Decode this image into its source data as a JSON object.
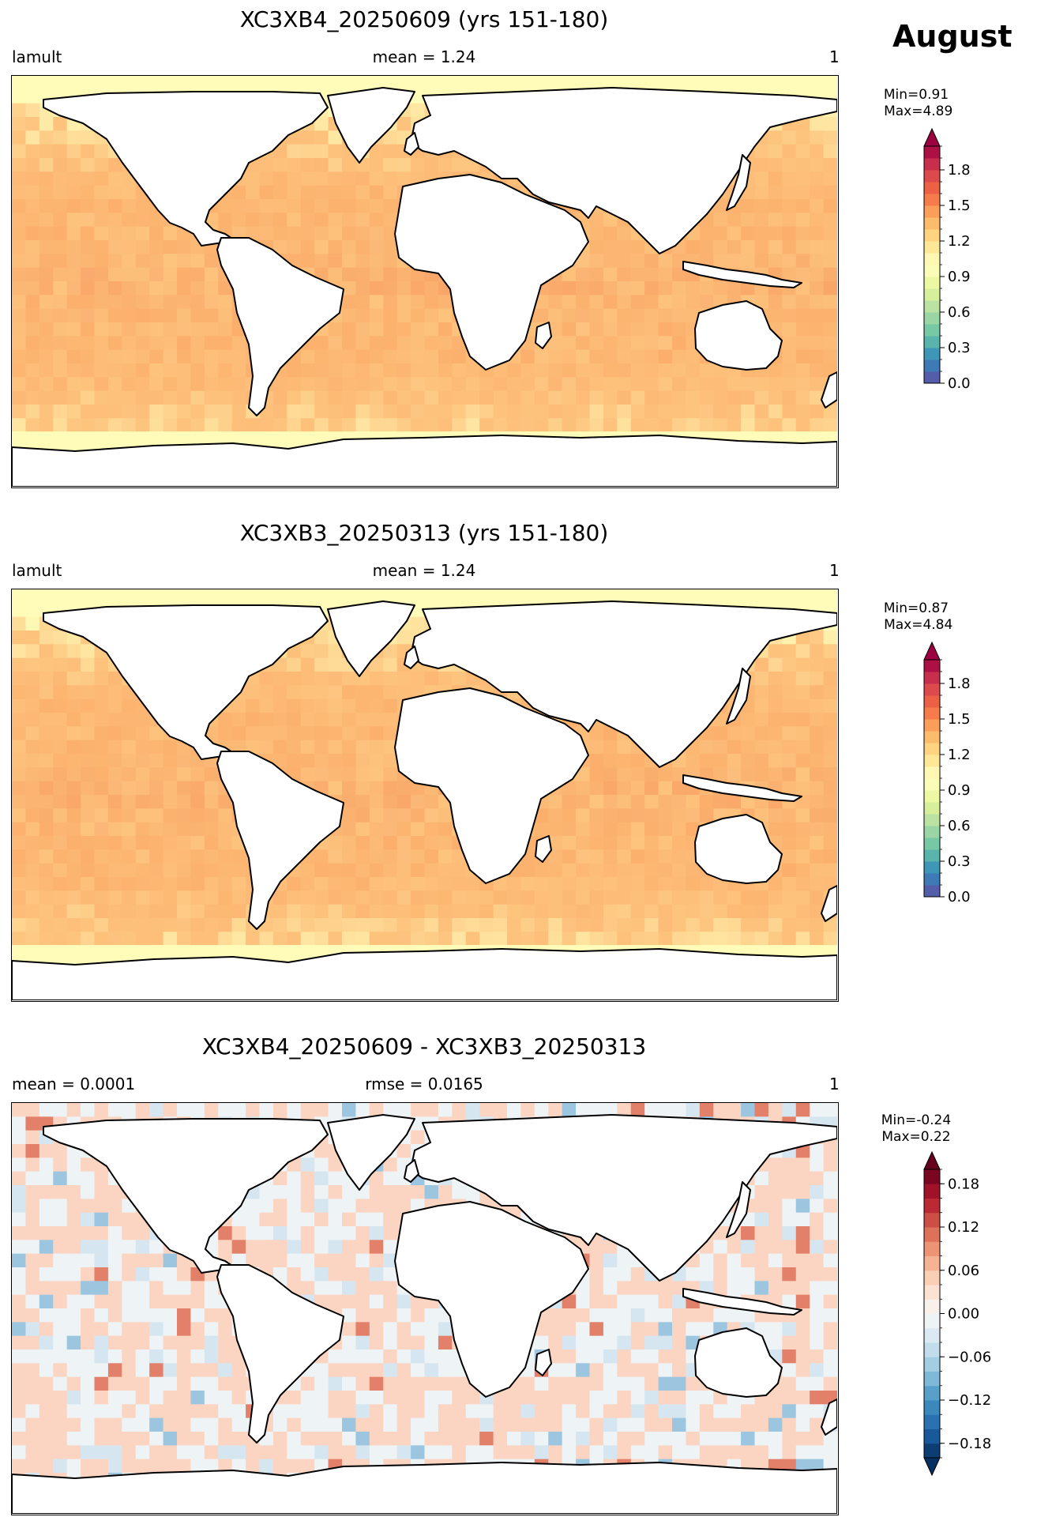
{
  "figure": {
    "month": "August"
  },
  "panels": [
    {
      "title": "XC3XB4_20250609 (yrs 151-180)",
      "left_label": "lamult",
      "center_label": "mean = 1.24",
      "right_label": "1",
      "colorbar": {
        "min_max_text": "Min=0.91\n Max=4.89",
        "cmap": "Spectral_r",
        "range": [
          0.0,
          2.0
        ],
        "extend": "max",
        "ticks": [
          "0.0",
          "0.3",
          "0.6",
          "0.9",
          "1.2",
          "1.5",
          "1.8"
        ]
      },
      "ocean_typical_value": 1.35
    },
    {
      "title": "XC3XB3_20250313 (yrs 151-180)",
      "left_label": "lamult",
      "center_label": "mean = 1.24",
      "right_label": "1",
      "colorbar": {
        "min_max_text": "Min=0.87\n Max=4.84",
        "cmap": "Spectral_r",
        "range": [
          0.0,
          2.0
        ],
        "extend": "max",
        "ticks": [
          "0.0",
          "0.3",
          "0.6",
          "0.9",
          "1.2",
          "1.5",
          "1.8"
        ]
      },
      "ocean_typical_value": 1.35
    },
    {
      "title": "XC3XB4_20250609 - XC3XB3_20250313",
      "left_label": "mean = 0.0001",
      "center_label": "rmse = 0.0165",
      "right_label": "1",
      "colorbar": {
        "min_max_text": "Min=-0.24\nMax=0.22",
        "cmap": "RdBu_r",
        "range": [
          -0.2,
          0.2
        ],
        "extend": "both",
        "ticks": [
          "−0.18",
          "−0.12",
          "−0.06",
          "0.00",
          "0.06",
          "0.12",
          "0.18"
        ]
      },
      "ocean_typical_value": 0.01
    }
  ],
  "colors": {
    "ocean_high_lat": "#fffbb8",
    "ocean_mid": "#fdc47e",
    "ocean_orange": "#fba161",
    "ocean_hot": "#f47c4a",
    "land": "#ffffff",
    "coast": "#000000",
    "diff_pos": "#fbd5c2",
    "diff_neutral": "#eef3f6",
    "diff_neg": "#d6e6f1",
    "diff_strong_pos": "#e2806a",
    "diff_strong_neg": "#9cc6e0"
  }
}
